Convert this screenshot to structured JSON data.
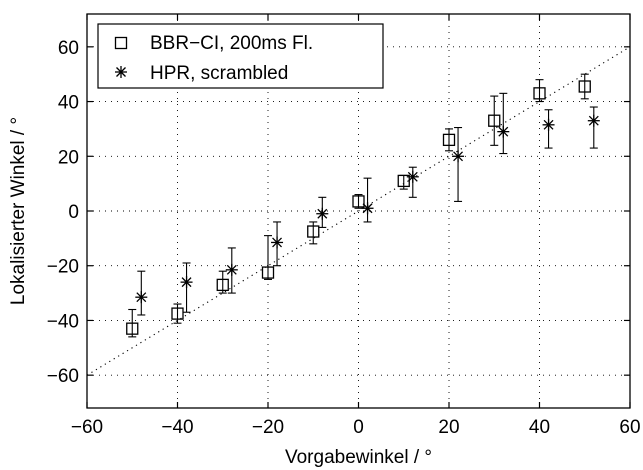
{
  "chart_data": {
    "type": "scatter",
    "title": "",
    "xlabel": "Vorgabewinkel / °",
    "ylabel": "Lokalisierter Winkel / °",
    "xlim": [
      -60,
      60
    ],
    "ylim": [
      -72,
      72
    ],
    "xticks": [
      -60,
      -40,
      -20,
      0,
      20,
      40,
      60
    ],
    "yticks": [
      -60,
      -40,
      -20,
      0,
      20,
      40,
      60
    ],
    "xtick_labels": [
      "−60",
      "−40",
      "−20",
      "0",
      "20",
      "40",
      "60"
    ],
    "ytick_labels": [
      "−60",
      "−40",
      "−20",
      "0",
      "20",
      "40",
      "60"
    ],
    "grid": true,
    "grid_style": "dotted",
    "legend_position": "top-left",
    "reference_line": {
      "style": "dotted",
      "from": [
        -60,
        -60
      ],
      "to": [
        60,
        60
      ]
    },
    "series": [
      {
        "name": "BBR−CI, 200ms Fl.",
        "marker": "square",
        "color": "#000000",
        "points": [
          {
            "x": -50,
            "y": -43,
            "ylow": -46,
            "yhigh": -36
          },
          {
            "x": -40,
            "y": -37.5,
            "ylow": -41,
            "yhigh": -34
          },
          {
            "x": -30,
            "y": -27,
            "ylow": -30,
            "yhigh": -22
          },
          {
            "x": -20,
            "y": -22.5,
            "ylow": -25,
            "yhigh": -9
          },
          {
            "x": -10,
            "y": -7.5,
            "ylow": -12,
            "yhigh": -4
          },
          {
            "x": 0,
            "y": 3.5,
            "ylow": 1,
            "yhigh": 6
          },
          {
            "x": 10,
            "y": 11,
            "ylow": 8,
            "yhigh": 13
          },
          {
            "x": 20,
            "y": 26,
            "ylow": 22,
            "yhigh": 30
          },
          {
            "x": 30,
            "y": 33,
            "ylow": 24,
            "yhigh": 42
          },
          {
            "x": 40,
            "y": 43,
            "ylow": 40,
            "yhigh": 48
          },
          {
            "x": 50,
            "y": 45.5,
            "ylow": 41,
            "yhigh": 50
          }
        ]
      },
      {
        "name": "HPR, scrambled",
        "marker": "asterisk",
        "color": "#000000",
        "points": [
          {
            "x": -48,
            "y": -31.5,
            "ylow": -38,
            "yhigh": -22
          },
          {
            "x": -38,
            "y": -26,
            "ylow": -37,
            "yhigh": -19
          },
          {
            "x": -28,
            "y": -21.5,
            "ylow": -30,
            "yhigh": -13.5
          },
          {
            "x": -18,
            "y": -11.5,
            "ylow": -20,
            "yhigh": -4
          },
          {
            "x": -8,
            "y": -1,
            "ylow": -6,
            "yhigh": 5
          },
          {
            "x": 2,
            "y": 1,
            "ylow": -4,
            "yhigh": 12
          },
          {
            "x": 12,
            "y": 12.5,
            "ylow": 5,
            "yhigh": 16
          },
          {
            "x": 22,
            "y": 20,
            "ylow": 3.5,
            "yhigh": 30.5
          },
          {
            "x": 32,
            "y": 29,
            "ylow": 21,
            "yhigh": 43
          },
          {
            "x": 42,
            "y": 31.5,
            "ylow": 23,
            "yhigh": 37
          },
          {
            "x": 52,
            "y": 33,
            "ylow": 23,
            "yhigh": 38
          }
        ]
      }
    ]
  }
}
